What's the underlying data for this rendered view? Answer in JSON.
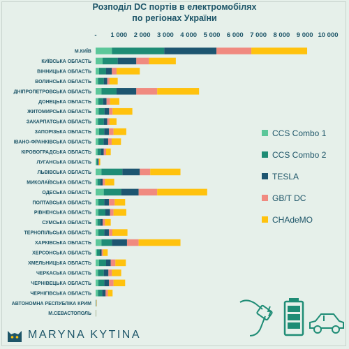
{
  "title_line1": "Розподіл DC портів в електромобілях",
  "title_line2": "по регіонах України",
  "brand": "MARYNA KYTINA",
  "chart_data": {
    "type": "bar",
    "orientation": "horizontal",
    "stacked": true,
    "xlim": [
      0,
      10000
    ],
    "xticks": [
      "-",
      "1 000",
      "2 000",
      "3 000",
      "4 000",
      "5 000",
      "6 000",
      "7 000",
      "8 000",
      "9 000",
      "10 000"
    ],
    "categories": [
      "М.КИЇВ",
      "КИЇВСЬКА ОБЛАСТЬ",
      "ВІННИЦЬКА ОБЛАСТЬ",
      "ВОЛИНСЬКА ОБЛАСТЬ",
      "ДНІПРОПЕТРОВСЬКА ОБЛАСТЬ",
      "ДОНЕЦЬКА ОБЛАСТЬ",
      "ЖИТОМИРСЬКА ОБЛАСТЬ",
      "ЗАКАРПАТСЬКА ОБЛАСТЬ",
      "ЗАПОРІЗЬКА ОБЛАСТЬ",
      "ІВАНО-ФРАНКІВСЬКА ОБЛАСТЬ",
      "КІРОВОГРАДСЬКА ОБЛАСТЬ",
      "ЛУГАНСЬКА ОБЛАСТЬ",
      "ЛЬВІВСЬКА ОБЛАСТЬ",
      "МИКОЛАЇВСЬКА ОБЛАСТЬ",
      "ОДЕСЬКА ОБЛАСТЬ",
      "ПОЛТАВСЬКА ОБЛАСТЬ",
      "РІВНЕНСЬКА ОБЛАСТЬ",
      "СУМСЬКА ОБЛАСТЬ",
      "ТЕРНОПІЛЬСЬКА ОБЛАСТЬ",
      "ХАРКІВСЬКА ОБЛАСТЬ",
      "ХЕРСОНСЬКА ОБЛАСТЬ",
      "ХМЕЛЬНИЦЬКА ОБЛАСТЬ",
      "ЧЕРКАСЬКА ОБЛАСТЬ",
      "ЧЕРНІВЕЦЬКА ОБЛАСТЬ",
      "ЧЕРНІГІВСЬКА ОБЛАСТЬ",
      "АВТОНОМНА РЕСПУБЛІКА КРИМ",
      "М.СЕВАСТОПОЛЬ"
    ],
    "series": [
      {
        "name": "CCS Combo 1",
        "color": "#5cc79a",
        "values": [
          700,
          300,
          150,
          100,
          250,
          120,
          130,
          100,
          150,
          120,
          80,
          40,
          250,
          80,
          350,
          120,
          120,
          80,
          120,
          250,
          60,
          150,
          100,
          120,
          100,
          10,
          5
        ]
      },
      {
        "name": "CCS Combo 2",
        "color": "#1e8c75",
        "values": [
          2250,
          650,
          300,
          250,
          650,
          200,
          250,
          250,
          220,
          220,
          150,
          50,
          900,
          120,
          750,
          250,
          300,
          120,
          250,
          450,
          120,
          300,
          250,
          250,
          180,
          10,
          5
        ]
      },
      {
        "name": "TESLA",
        "color": "#1d5570",
        "values": [
          2250,
          800,
          250,
          150,
          850,
          150,
          200,
          150,
          200,
          200,
          120,
          30,
          750,
          100,
          750,
          200,
          200,
          100,
          200,
          650,
          80,
          200,
          200,
          200,
          150,
          10,
          5
        ]
      },
      {
        "name": "GB/T DC",
        "color": "#f08a80",
        "values": [
          1500,
          550,
          200,
          100,
          900,
          150,
          150,
          100,
          200,
          150,
          100,
          30,
          450,
          100,
          800,
          250,
          150,
          100,
          150,
          500,
          60,
          200,
          150,
          200,
          100,
          10,
          5
        ]
      },
      {
        "name": "CHAdeMO",
        "color": "#ffc20e",
        "values": [
          2400,
          1150,
          1000,
          350,
          1800,
          400,
          850,
          300,
          550,
          400,
          200,
          50,
          1300,
          400,
          2150,
          450,
          550,
          250,
          650,
          1800,
          200,
          450,
          400,
          500,
          200,
          10,
          5
        ]
      }
    ]
  }
}
